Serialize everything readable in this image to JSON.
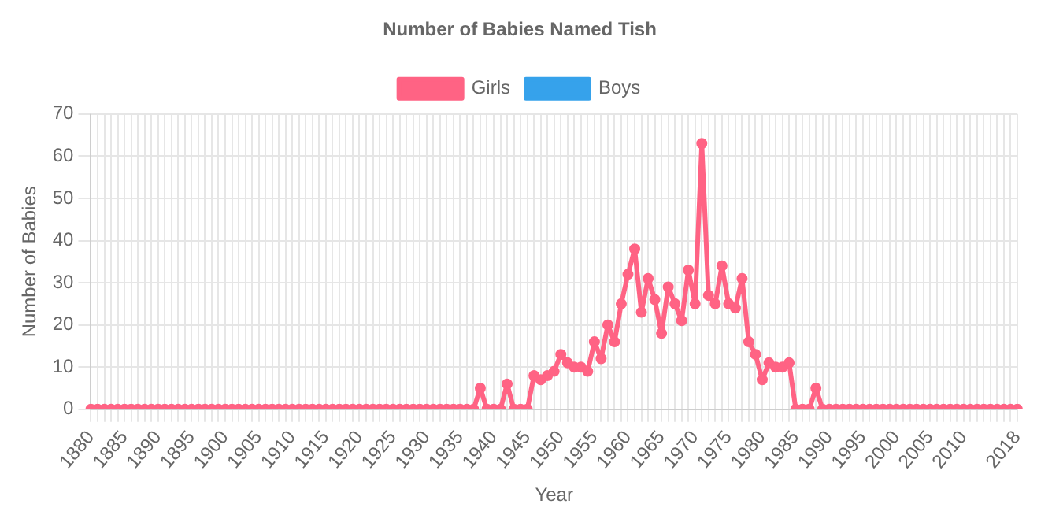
{
  "chart_data": {
    "type": "line",
    "title": "Number of Babies Named Tish",
    "xlabel": "Year",
    "ylabel": "Number of Babies",
    "categories": [
      "1880",
      null,
      null,
      null,
      null,
      "1885",
      null,
      null,
      null,
      null,
      "1890",
      null,
      null,
      null,
      null,
      "1895",
      null,
      null,
      null,
      null,
      "1900",
      null,
      null,
      null,
      null,
      "1905",
      null,
      null,
      null,
      null,
      "1910",
      null,
      null,
      null,
      null,
      "1915",
      null,
      null,
      null,
      null,
      "1920",
      null,
      null,
      null,
      null,
      "1925",
      null,
      null,
      null,
      null,
      "1930",
      null,
      null,
      null,
      null,
      "1935",
      null,
      null,
      null,
      null,
      "1940",
      null,
      null,
      null,
      null,
      "1945",
      null,
      null,
      null,
      null,
      "1950",
      null,
      null,
      null,
      null,
      "1955",
      null,
      null,
      null,
      null,
      "1960",
      null,
      null,
      null,
      null,
      "1965",
      null,
      null,
      null,
      null,
      "1970",
      null,
      null,
      null,
      null,
      "1975",
      null,
      null,
      null,
      null,
      "1980",
      null,
      null,
      null,
      null,
      "1985",
      null,
      null,
      null,
      null,
      "1990",
      null,
      null,
      null,
      null,
      "1995",
      null,
      null,
      null,
      null,
      "2000",
      null,
      null,
      null,
      null,
      "2005",
      null,
      null,
      null,
      null,
      "2010",
      null,
      null,
      null,
      null,
      null,
      null,
      null,
      "2018"
    ],
    "series": [
      {
        "name": "Girls",
        "color": "#ff6384",
        "values": [
          0,
          0,
          0,
          0,
          0,
          0,
          0,
          0,
          0,
          0,
          0,
          0,
          0,
          0,
          0,
          0,
          0,
          0,
          0,
          0,
          0,
          0,
          0,
          0,
          0,
          0,
          0,
          0,
          0,
          0,
          0,
          0,
          0,
          0,
          0,
          0,
          0,
          0,
          0,
          0,
          0,
          0,
          0,
          0,
          0,
          0,
          0,
          0,
          0,
          0,
          0,
          0,
          0,
          0,
          0,
          0,
          0,
          0,
          5,
          0,
          0,
          0,
          6,
          0,
          0,
          0,
          8,
          7,
          8,
          9,
          13,
          11,
          10,
          10,
          9,
          16,
          12,
          20,
          16,
          25,
          32,
          38,
          23,
          31,
          26,
          18,
          29,
          25,
          21,
          33,
          25,
          63,
          27,
          25,
          34,
          25,
          24,
          31,
          16,
          13,
          7,
          11,
          10,
          10,
          11,
          0,
          0,
          0,
          5,
          0,
          0,
          0,
          0,
          0,
          0,
          0,
          0,
          0,
          0,
          0,
          0,
          0,
          0,
          0,
          0,
          0,
          0,
          0,
          0,
          0,
          0,
          0,
          0,
          0,
          0,
          0,
          0,
          0,
          0
        ]
      },
      {
        "name": "Boys",
        "color": "#36a2eb",
        "values": [
          null,
          null,
          null,
          null,
          null,
          null,
          null,
          null,
          null,
          null,
          null,
          null,
          null,
          null,
          null,
          null,
          null,
          null,
          null,
          null,
          null,
          null,
          null,
          null,
          null,
          null,
          null,
          null,
          null,
          null,
          null,
          null,
          null,
          null,
          null,
          null,
          null,
          null,
          null,
          null,
          null,
          null,
          null,
          null,
          null,
          null,
          null,
          null,
          null,
          null,
          null,
          null,
          null,
          null,
          null,
          null,
          null,
          null,
          null,
          null,
          null,
          null,
          null,
          null,
          null,
          null,
          null,
          null,
          null,
          null,
          null,
          null,
          null,
          null,
          null,
          null,
          null,
          null,
          null,
          null,
          null,
          null,
          null,
          null,
          null,
          null,
          null,
          null,
          null,
          null,
          null,
          null,
          null,
          null,
          null,
          null,
          null,
          null,
          null,
          null,
          null,
          null,
          null,
          null,
          null,
          null,
          null,
          null,
          null,
          null,
          null,
          null,
          null,
          null,
          null,
          null,
          null,
          null,
          null,
          null,
          null,
          null,
          null,
          null,
          null,
          null,
          null,
          null,
          null,
          null,
          null,
          null,
          null,
          null,
          null,
          null,
          null,
          null,
          null
        ]
      }
    ],
    "ylim": [
      0,
      70
    ],
    "yticks": [
      0,
      10,
      20,
      30,
      40,
      50,
      60,
      70
    ],
    "grid": true,
    "legend": "top",
    "marker": "circle",
    "line_style": "solid"
  }
}
